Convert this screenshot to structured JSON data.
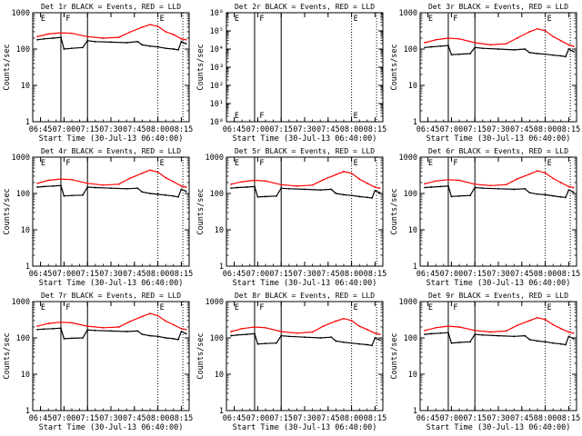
{
  "layout_note": "",
  "common": {
    "xlabel": "Start Time (30-Jul-13 06:40:00)",
    "ylabel": "Counts/sec",
    "x_ticks": [
      "06:45",
      "07:00",
      "07:15",
      "07:30",
      "07:45",
      "08:00",
      "08:15"
    ],
    "y_ticks_log": [
      "1",
      "10",
      "100",
      "1000"
    ],
    "colors": {
      "events": "#000000",
      "lld": "#ff0000",
      "axis": "#000000"
    }
  },
  "chart_data": [
    {
      "type": "line",
      "title": "Det 1r BLACK = Events, RED = LLD",
      "ylim": [
        1,
        1000
      ],
      "yscale": "log",
      "markers": [
        {
          "label": "E",
          "x": "06:44"
        },
        {
          "label": "F",
          "x": "07:00"
        },
        {
          "label": "E",
          "x": "08:00"
        }
      ],
      "solid_vlines": [
        "06:58",
        "07:15"
      ],
      "dotted_vlines": [
        "08:00",
        "08:16"
      ],
      "series": [
        {
          "name": "Events",
          "color": "#000000",
          "x": [
            "06:43",
            "06:47",
            "06:53",
            "06:58",
            "07:00",
            "07:05",
            "07:12",
            "07:15",
            "07:20",
            "07:30",
            "07:40",
            "07:47",
            "07:50",
            "07:55",
            "08:00",
            "08:05",
            "08:10",
            "08:13",
            "08:15",
            "08:18"
          ],
          "values": [
            180,
            190,
            200,
            210,
            100,
            105,
            110,
            170,
            160,
            155,
            150,
            160,
            130,
            120,
            115,
            105,
            100,
            95,
            160,
            140
          ]
        },
        {
          "name": "LLD",
          "color": "#ff0000",
          "x": [
            "06:43",
            "06:50",
            "06:58",
            "07:05",
            "07:15",
            "07:25",
            "07:35",
            "07:42",
            "07:50",
            "07:55",
            "08:00",
            "08:05",
            "08:10",
            "08:15",
            "08:18"
          ],
          "values": [
            220,
            260,
            280,
            270,
            220,
            200,
            210,
            290,
            400,
            470,
            420,
            300,
            250,
            190,
            180
          ]
        }
      ]
    },
    {
      "type": "line",
      "title": "Det 2r BLACK = Events, RED = LLD",
      "ylim": [
        1,
        1000000
      ],
      "yscale": "log",
      "y_ticks_log": [
        "10⁰",
        "10¹",
        "10²",
        "10³",
        "10⁴",
        "10⁵",
        "10⁶"
      ],
      "markers": [
        {
          "label": "E",
          "x": "06:44"
        },
        {
          "label": "F",
          "x": "07:00"
        },
        {
          "label": "E",
          "x": "08:00"
        }
      ],
      "solid_vlines": [
        "06:58",
        "07:15"
      ],
      "dotted_vlines": [
        "08:00",
        "08:16"
      ],
      "series": []
    },
    {
      "type": "line",
      "title": "Det 3r BLACK = Events, RED = LLD",
      "ylim": [
        1,
        1000
      ],
      "yscale": "log",
      "markers": [
        {
          "label": "E",
          "x": "06:44"
        },
        {
          "label": "F",
          "x": "07:00"
        },
        {
          "label": "E",
          "x": "08:00"
        }
      ],
      "solid_vlines": [
        "06:58",
        "07:15"
      ],
      "dotted_vlines": [
        "08:00",
        "08:16"
      ],
      "series": [
        {
          "name": "Events",
          "color": "#000000",
          "x": [
            "06:43",
            "06:47",
            "06:53",
            "06:58",
            "07:00",
            "07:05",
            "07:12",
            "07:15",
            "07:20",
            "07:30",
            "07:40",
            "07:47",
            "07:50",
            "07:55",
            "08:00",
            "08:05",
            "08:10",
            "08:13",
            "08:15",
            "08:18"
          ],
          "values": [
            110,
            115,
            120,
            125,
            70,
            72,
            75,
            110,
            105,
            100,
            95,
            100,
            80,
            75,
            72,
            68,
            65,
            62,
            100,
            85
          ]
        },
        {
          "name": "LLD",
          "color": "#ff0000",
          "x": [
            "06:43",
            "06:50",
            "06:58",
            "07:05",
            "07:15",
            "07:25",
            "07:35",
            "07:42",
            "07:50",
            "07:55",
            "08:00",
            "08:05",
            "08:10",
            "08:15",
            "08:18"
          ],
          "values": [
            150,
            180,
            200,
            190,
            150,
            130,
            140,
            200,
            300,
            360,
            320,
            220,
            170,
            130,
            120
          ]
        }
      ]
    },
    {
      "type": "line",
      "title": "Det 4r BLACK = Events, RED = LLD",
      "ylim": [
        1,
        1000
      ],
      "yscale": "log",
      "markers": [
        {
          "label": "E",
          "x": "06:44"
        },
        {
          "label": "F",
          "x": "07:00"
        },
        {
          "label": "E",
          "x": "08:00"
        }
      ],
      "solid_vlines": [
        "06:58",
        "07:15"
      ],
      "dotted_vlines": [
        "08:00",
        "08:16"
      ],
      "series": [
        {
          "name": "Events",
          "color": "#000000",
          "x": [
            "06:43",
            "06:47",
            "06:53",
            "06:58",
            "07:00",
            "07:05",
            "07:12",
            "07:15",
            "07:20",
            "07:30",
            "07:40",
            "07:47",
            "07:50",
            "07:55",
            "08:00",
            "08:05",
            "08:10",
            "08:13",
            "08:15",
            "08:18"
          ],
          "values": [
            150,
            155,
            160,
            165,
            85,
            88,
            90,
            150,
            145,
            140,
            135,
            140,
            110,
            100,
            95,
            90,
            85,
            80,
            130,
            115
          ]
        },
        {
          "name": "LLD",
          "color": "#ff0000",
          "x": [
            "06:43",
            "06:50",
            "06:58",
            "07:05",
            "07:15",
            "07:25",
            "07:35",
            "07:42",
            "07:50",
            "07:55",
            "08:00",
            "08:05",
            "08:10",
            "08:15",
            "08:18"
          ],
          "values": [
            190,
            230,
            250,
            240,
            190,
            170,
            180,
            260,
            360,
            440,
            390,
            270,
            210,
            160,
            150
          ]
        }
      ]
    },
    {
      "type": "line",
      "title": "Det 5r BLACK = Events, RED = LLD",
      "ylim": [
        1,
        1000
      ],
      "yscale": "log",
      "markers": [
        {
          "label": "E",
          "x": "06:44"
        },
        {
          "label": "F",
          "x": "07:00"
        },
        {
          "label": "E",
          "x": "08:00"
        }
      ],
      "solid_vlines": [
        "06:58",
        "07:15"
      ],
      "dotted_vlines": [
        "08:00",
        "08:16"
      ],
      "series": [
        {
          "name": "Events",
          "color": "#000000",
          "x": [
            "06:43",
            "06:47",
            "06:53",
            "06:58",
            "07:00",
            "07:05",
            "07:12",
            "07:15",
            "07:20",
            "07:30",
            "07:40",
            "07:47",
            "07:50",
            "07:55",
            "08:00",
            "08:05",
            "08:10",
            "08:13",
            "08:15",
            "08:18"
          ],
          "values": [
            140,
            145,
            150,
            155,
            80,
            82,
            85,
            140,
            135,
            130,
            125,
            130,
            100,
            92,
            88,
            82,
            78,
            75,
            120,
            105
          ]
        },
        {
          "name": "LLD",
          "color": "#ff0000",
          "x": [
            "06:43",
            "06:50",
            "06:58",
            "07:05",
            "07:15",
            "07:25",
            "07:35",
            "07:42",
            "07:50",
            "07:55",
            "08:00",
            "08:05",
            "08:10",
            "08:15",
            "08:18"
          ],
          "values": [
            180,
            210,
            230,
            220,
            175,
            160,
            170,
            240,
            330,
            400,
            360,
            250,
            190,
            150,
            140
          ]
        }
      ]
    },
    {
      "type": "line",
      "title": "Det 6r BLACK = Events, RED = LLD",
      "ylim": [
        1,
        1000
      ],
      "yscale": "log",
      "markers": [
        {
          "label": "E",
          "x": "06:44"
        },
        {
          "label": "F",
          "x": "07:00"
        },
        {
          "label": "E",
          "x": "08:00"
        }
      ],
      "solid_vlines": [
        "06:58",
        "07:15"
      ],
      "dotted_vlines": [
        "08:00",
        "08:16"
      ],
      "series": [
        {
          "name": "Events",
          "color": "#000000",
          "x": [
            "06:43",
            "06:47",
            "06:53",
            "06:58",
            "07:00",
            "07:05",
            "07:12",
            "07:15",
            "07:20",
            "07:30",
            "07:40",
            "07:47",
            "07:50",
            "07:55",
            "08:00",
            "08:05",
            "08:10",
            "08:13",
            "08:15",
            "08:18"
          ],
          "values": [
            145,
            150,
            155,
            160,
            82,
            85,
            88,
            145,
            140,
            135,
            130,
            135,
            105,
            96,
            92,
            86,
            80,
            78,
            125,
            110
          ]
        },
        {
          "name": "LLD",
          "color": "#ff0000",
          "x": [
            "06:43",
            "06:50",
            "06:58",
            "07:05",
            "07:15",
            "07:25",
            "07:35",
            "07:42",
            "07:50",
            "07:55",
            "08:00",
            "08:05",
            "08:10",
            "08:15",
            "08:18"
          ],
          "values": [
            185,
            220,
            240,
            230,
            180,
            165,
            175,
            250,
            340,
            420,
            370,
            260,
            200,
            155,
            145
          ]
        }
      ]
    },
    {
      "type": "line",
      "title": "Det 7r BLACK = Events, RED = LLD",
      "ylim": [
        1,
        1000
      ],
      "yscale": "log",
      "markers": [
        {
          "label": "E",
          "x": "06:44"
        },
        {
          "label": "F",
          "x": "07:00"
        },
        {
          "label": "E",
          "x": "08:00"
        }
      ],
      "solid_vlines": [
        "06:58",
        "07:15"
      ],
      "dotted_vlines": [
        "08:00",
        "08:16"
      ],
      "series": [
        {
          "name": "Events",
          "color": "#000000",
          "x": [
            "06:43",
            "06:47",
            "06:53",
            "06:58",
            "07:00",
            "07:05",
            "07:12",
            "07:15",
            "07:20",
            "07:30",
            "07:40",
            "07:47",
            "07:50",
            "07:55",
            "08:00",
            "08:05",
            "08:10",
            "08:13",
            "08:15",
            "08:18"
          ],
          "values": [
            170,
            175,
            180,
            185,
            95,
            98,
            100,
            165,
            160,
            155,
            150,
            155,
            125,
            115,
            110,
            100,
            95,
            90,
            150,
            130
          ]
        },
        {
          "name": "LLD",
          "color": "#ff0000",
          "x": [
            "06:43",
            "06:50",
            "06:58",
            "07:05",
            "07:15",
            "07:25",
            "07:35",
            "07:42",
            "07:50",
            "07:55",
            "08:00",
            "08:05",
            "08:10",
            "08:15",
            "08:18"
          ],
          "values": [
            210,
            250,
            270,
            260,
            210,
            190,
            200,
            280,
            390,
            470,
            410,
            290,
            230,
            180,
            170
          ]
        }
      ]
    },
    {
      "type": "line",
      "title": "Det 8r BLACK = Events, RED = LLD",
      "ylim": [
        1,
        1000
      ],
      "yscale": "log",
      "markers": [
        {
          "label": "E",
          "x": "06:44"
        },
        {
          "label": "F",
          "x": "07:00"
        },
        {
          "label": "E",
          "x": "08:00"
        }
      ],
      "solid_vlines": [
        "06:58",
        "07:15"
      ],
      "dotted_vlines": [
        "08:00",
        "08:16"
      ],
      "series": [
        {
          "name": "Events",
          "color": "#000000",
          "x": [
            "06:43",
            "06:47",
            "06:53",
            "06:58",
            "07:00",
            "07:05",
            "07:12",
            "07:15",
            "07:20",
            "07:30",
            "07:40",
            "07:47",
            "07:50",
            "07:55",
            "08:00",
            "08:05",
            "08:10",
            "08:13",
            "08:15",
            "08:18"
          ],
          "values": [
            115,
            120,
            125,
            130,
            68,
            70,
            72,
            115,
            110,
            105,
            100,
            105,
            82,
            76,
            72,
            68,
            65,
            62,
            100,
            88
          ]
        },
        {
          "name": "LLD",
          "color": "#ff0000",
          "x": [
            "06:43",
            "06:50",
            "06:58",
            "07:05",
            "07:15",
            "07:25",
            "07:35",
            "07:42",
            "07:50",
            "07:55",
            "08:00",
            "08:05",
            "08:10",
            "08:15",
            "08:18"
          ],
          "values": [
            150,
            180,
            200,
            190,
            150,
            135,
            145,
            210,
            290,
            340,
            300,
            210,
            170,
            135,
            125
          ]
        }
      ]
    },
    {
      "type": "line",
      "title": "Det 9r BLACK = Events, RED = LLD",
      "ylim": [
        1,
        1000
      ],
      "yscale": "log",
      "markers": [
        {
          "label": "E",
          "x": "06:44"
        },
        {
          "label": "F",
          "x": "07:00"
        },
        {
          "label": "E",
          "x": "08:00"
        }
      ],
      "solid_vlines": [
        "06:58",
        "07:15"
      ],
      "dotted_vlines": [
        "08:00",
        "08:16"
      ],
      "series": [
        {
          "name": "Events",
          "color": "#000000",
          "x": [
            "06:43",
            "06:47",
            "06:53",
            "06:58",
            "07:00",
            "07:05",
            "07:12",
            "07:15",
            "07:20",
            "07:30",
            "07:40",
            "07:47",
            "07:50",
            "07:55",
            "08:00",
            "08:05",
            "08:10",
            "08:13",
            "08:15",
            "08:18"
          ],
          "values": [
            125,
            130,
            135,
            140,
            72,
            75,
            78,
            125,
            120,
            115,
            110,
            115,
            90,
            82,
            78,
            72,
            68,
            65,
            110,
            95
          ]
        },
        {
          "name": "LLD",
          "color": "#ff0000",
          "x": [
            "06:43",
            "06:50",
            "06:58",
            "07:05",
            "07:15",
            "07:25",
            "07:35",
            "07:42",
            "07:50",
            "07:55",
            "08:00",
            "08:05",
            "08:10",
            "08:15",
            "08:18"
          ],
          "values": [
            160,
            190,
            210,
            200,
            160,
            145,
            155,
            220,
            300,
            360,
            320,
            230,
            180,
            145,
            135
          ]
        }
      ]
    }
  ]
}
